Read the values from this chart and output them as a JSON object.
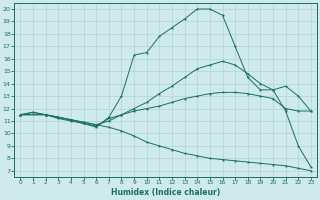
{
  "xlabel": "Humidex (Indice chaleur)",
  "bg_color": "#ceeaea",
  "line_color": "#1a6e64",
  "grid_color": "#afd4d4",
  "xlim": [
    -0.5,
    23.5
  ],
  "ylim": [
    6.5,
    20.5
  ],
  "xticks": [
    0,
    1,
    2,
    3,
    4,
    5,
    6,
    7,
    8,
    9,
    10,
    11,
    12,
    13,
    14,
    15,
    16,
    17,
    18,
    19,
    20,
    21,
    22,
    23
  ],
  "yticks": [
    7,
    8,
    9,
    10,
    11,
    12,
    13,
    14,
    15,
    16,
    17,
    18,
    19,
    20
  ],
  "line_main_x": [
    0,
    1,
    2,
    3,
    4,
    5,
    6,
    7,
    8,
    9,
    10,
    11,
    12,
    13,
    14,
    15,
    16,
    17,
    18,
    19,
    20,
    21,
    22,
    23
  ],
  "line_main_y": [
    11.5,
    11.7,
    11.5,
    11.3,
    11.1,
    10.8,
    10.5,
    11.3,
    13.0,
    16.3,
    16.5,
    17.8,
    18.5,
    19.2,
    20.0,
    20.0,
    19.5,
    17.0,
    14.5,
    13.5,
    13.5,
    11.8,
    9.0,
    7.3
  ],
  "line_flat_x": [
    0,
    1,
    2,
    3,
    4,
    5,
    6,
    7,
    8,
    9,
    10,
    11,
    12,
    13,
    14,
    15,
    16,
    17,
    18,
    19,
    20,
    21,
    22,
    23
  ],
  "line_flat_y": [
    11.5,
    11.7,
    11.5,
    11.2,
    11.0,
    10.8,
    10.6,
    11.2,
    11.5,
    11.8,
    12.0,
    12.2,
    12.5,
    12.8,
    13.0,
    13.2,
    13.3,
    13.3,
    13.2,
    13.0,
    12.8,
    12.0,
    11.8,
    11.8
  ],
  "line_rising_x": [
    0,
    2,
    3,
    4,
    5,
    6,
    7,
    8,
    9,
    10,
    11,
    12,
    13,
    14,
    15,
    16,
    17,
    18,
    19,
    20,
    21,
    22,
    23
  ],
  "line_rising_y": [
    11.5,
    11.5,
    11.3,
    11.1,
    10.9,
    10.7,
    11.0,
    11.5,
    12.0,
    12.5,
    13.2,
    13.8,
    14.5,
    15.2,
    15.5,
    15.8,
    15.5,
    14.8,
    14.0,
    13.5,
    13.8,
    13.0,
    11.8
  ],
  "line_down_x": [
    0,
    2,
    3,
    4,
    5,
    6,
    7,
    8,
    9,
    10,
    11,
    12,
    13,
    14,
    15,
    16,
    17,
    18,
    19,
    20,
    21,
    22,
    23
  ],
  "line_down_y": [
    11.5,
    11.5,
    11.3,
    11.1,
    10.9,
    10.7,
    10.5,
    10.2,
    9.8,
    9.3,
    9.0,
    8.7,
    8.4,
    8.2,
    8.0,
    7.9,
    7.8,
    7.7,
    7.6,
    7.5,
    7.4,
    7.2,
    7.0
  ]
}
